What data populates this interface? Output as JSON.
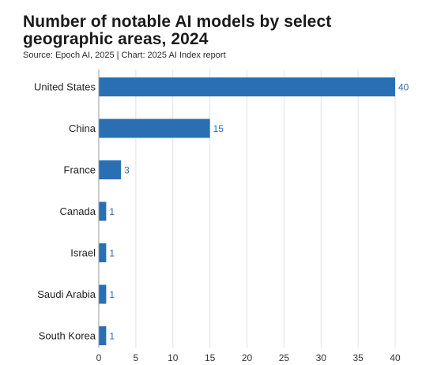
{
  "header": {
    "title": "Number of notable AI models by select geographic areas, 2024",
    "source": "Source: Epoch AI, 2025 | Chart: 2025 AI Index report"
  },
  "colors": {
    "bar": "#2a6fb4",
    "value_label": "#2a6fb4",
    "grid": "#e2e2e2",
    "axis": "#999999"
  },
  "chart_data": {
    "type": "bar",
    "orientation": "horizontal",
    "title": "Number of notable AI models by select geographic areas, 2024",
    "subtitle": "Source: Epoch AI, 2025 | Chart: 2025 AI Index report",
    "categories": [
      "United States",
      "China",
      "France",
      "Canada",
      "Israel",
      "Saudi Arabia",
      "South Korea"
    ],
    "values": [
      40,
      15,
      3,
      1,
      1,
      1,
      1
    ],
    "xlim": [
      0,
      40
    ],
    "xticks": [
      0,
      5,
      10,
      15,
      20,
      25,
      30,
      35,
      40
    ],
    "grid": true,
    "legend": "none",
    "data_labels": true
  }
}
